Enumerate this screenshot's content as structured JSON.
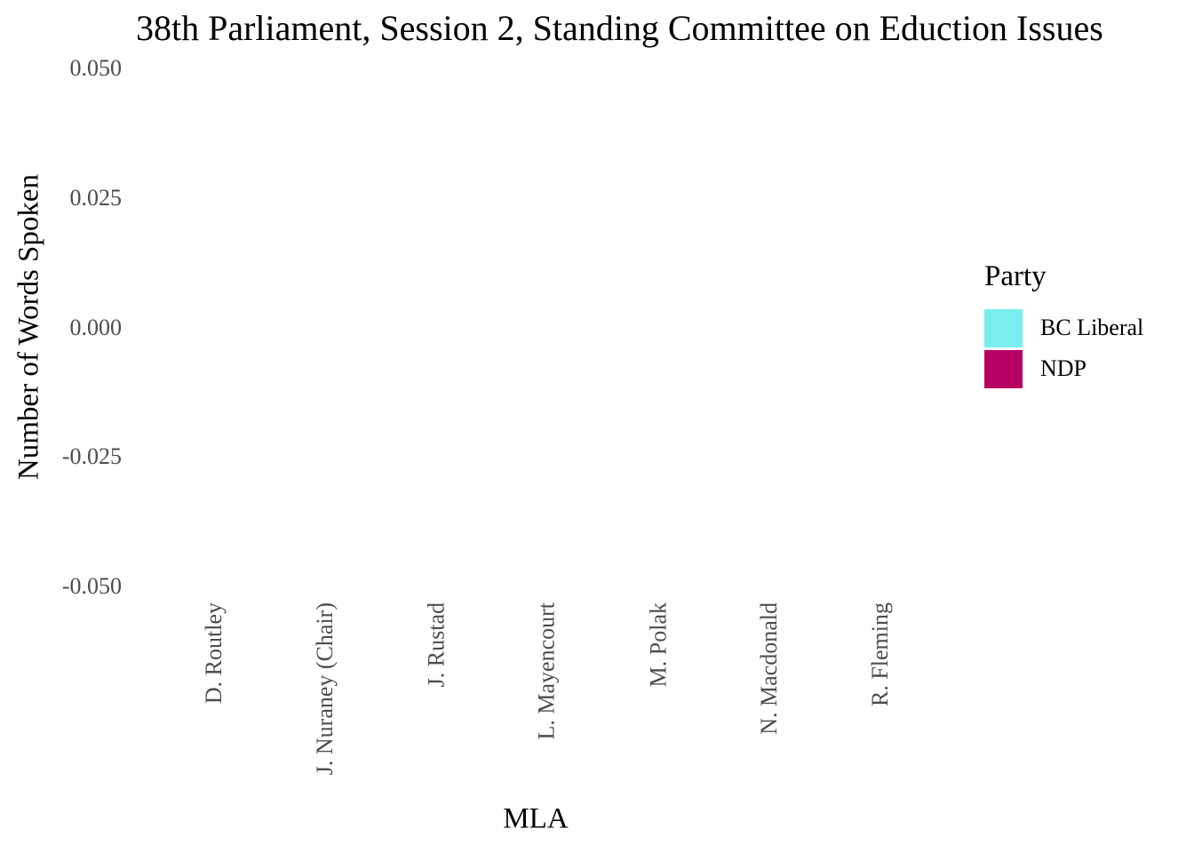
{
  "chart_data": {
    "type": "bar",
    "title": "38th Parliament, Session 2, Standing Committee on Eduction Issues",
    "xlabel": "MLA",
    "ylabel": "Number of Words Spoken",
    "categories": [
      "D. Routley",
      "J. Nuraney (Chair)",
      "J. Rustad",
      "L. Mayencourt",
      "M. Polak",
      "N. Macdonald",
      "R. Fleming"
    ],
    "series": [
      {
        "name": "BC Liberal",
        "color": "#7AEEEE",
        "values": [
          null,
          0,
          0,
          0,
          0,
          null,
          null
        ]
      },
      {
        "name": "NDP",
        "color": "#B70063",
        "values": [
          0,
          null,
          null,
          null,
          null,
          0,
          0
        ]
      }
    ],
    "ylim": [
      -0.05,
      0.05
    ],
    "yticks": [
      "0.050",
      "0.025",
      "0.000",
      "-0.025",
      "-0.050"
    ],
    "ytick_values": [
      0.05,
      0.025,
      0.0,
      -0.025,
      -0.05
    ],
    "grid": false,
    "legend": {
      "title": "Party",
      "placement": "right"
    }
  }
}
